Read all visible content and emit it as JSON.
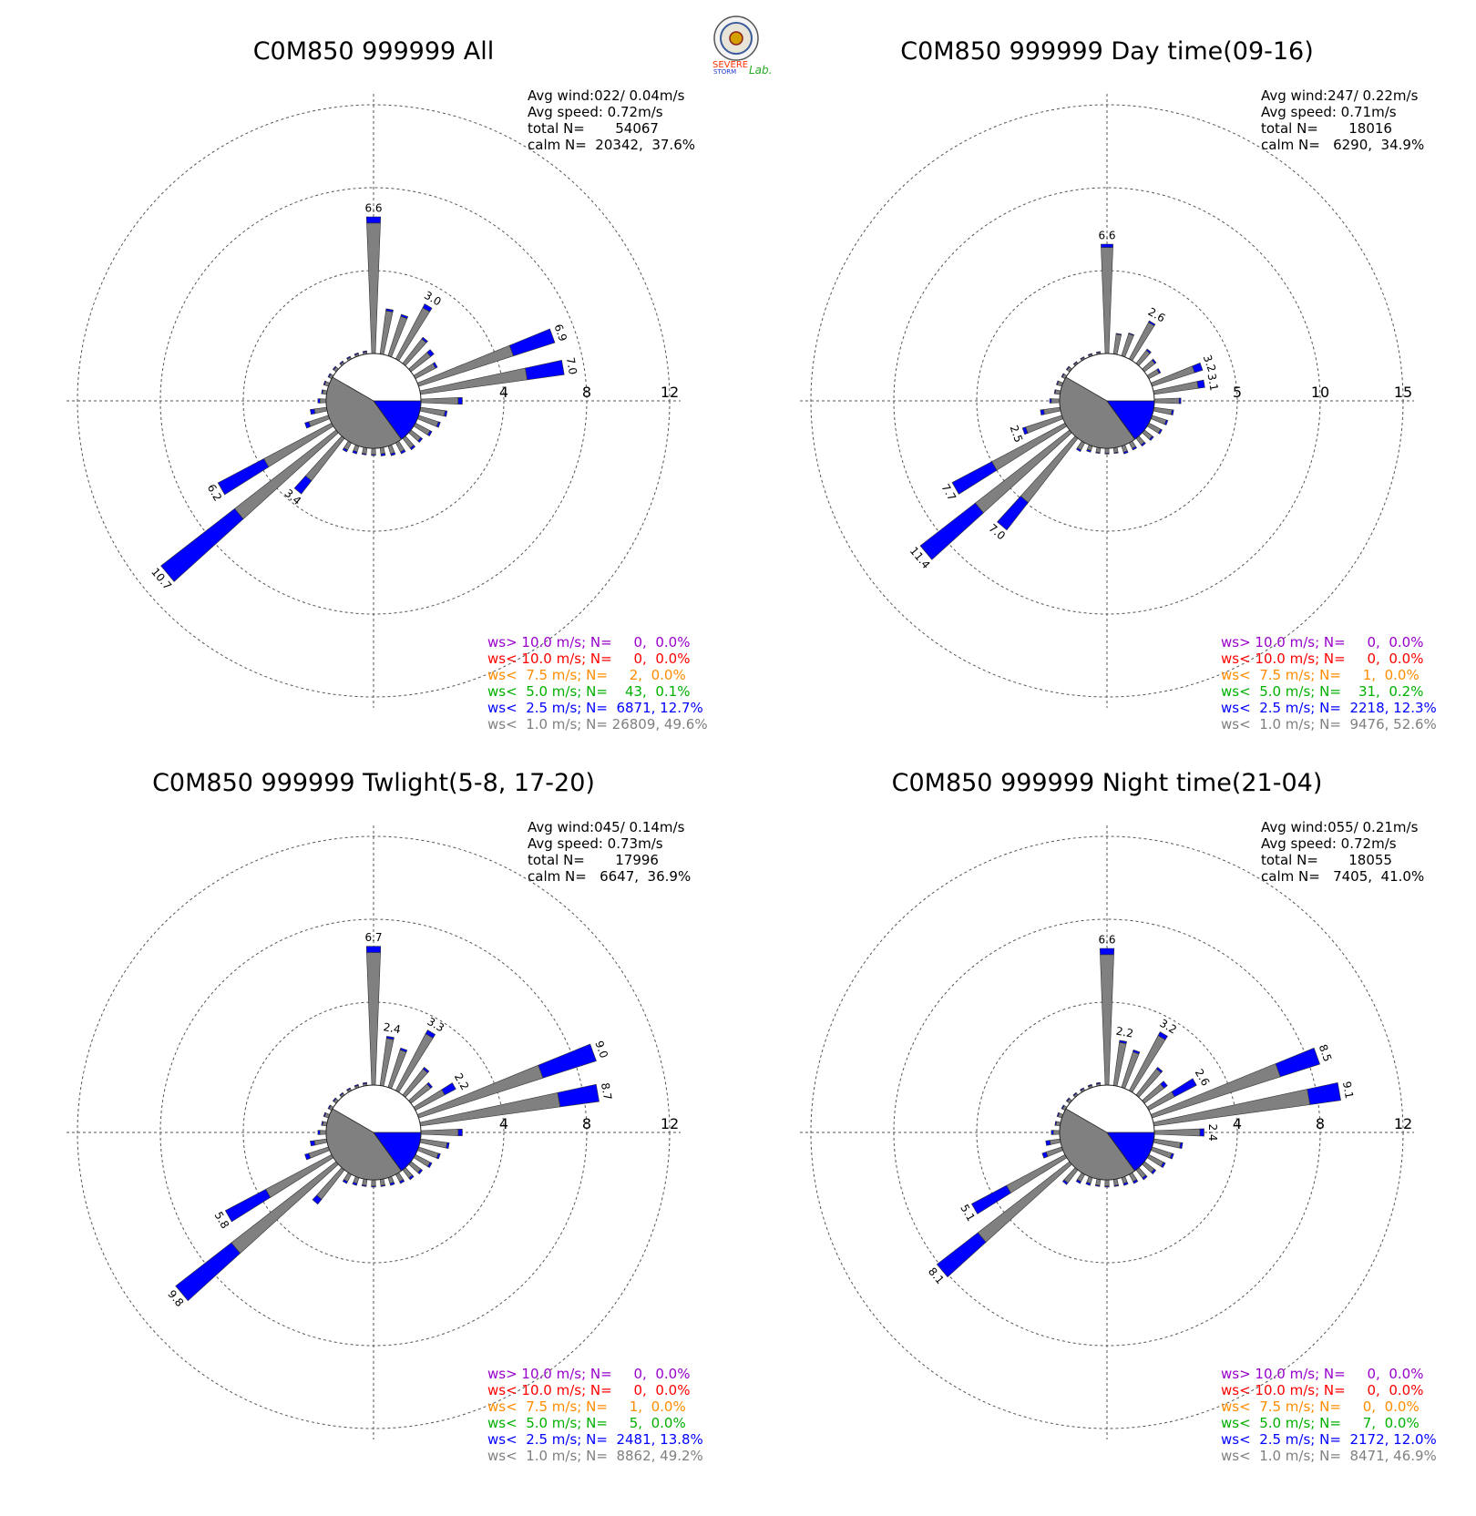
{
  "logo": {
    "text_severe": "SEVERE",
    "text_storm": "STORM",
    "text_lab": "Lab."
  },
  "colors": {
    "calm": "#808080",
    "lt1": "#808080",
    "lt25": "#0000ff",
    "lt5": "#00b000",
    "lt75": "#ff8c00",
    "lt10": "#ff0000",
    "gt10": "#9900cc"
  },
  "chart_data": [
    {
      "type": "wind-rose",
      "title": "C0M850 999999 All",
      "rings": [
        4,
        8,
        12
      ],
      "ring_labels": [
        "4",
        "8",
        "12"
      ],
      "stats": [
        "Avg wind:022/ 0.04m/s",
        "Avg speed: 0.72m/s",
        "total N=       54067",
        "calm N=  20342,  37.6%"
      ],
      "legend": [
        {
          "text": "ws> 10.0 m/s; N=     0,  0.0%",
          "key": "gt10"
        },
        {
          "text": "ws< 10.0 m/s; N=     0,  0.0%",
          "key": "lt10"
        },
        {
          "text": "ws<  7.5 m/s; N=     2,  0.0%",
          "key": "lt75"
        },
        {
          "text": "ws<  5.0 m/s; N=    43,  0.1%",
          "key": "lt5"
        },
        {
          "text": "ws<  2.5 m/s; N=  6871, 12.7%",
          "key": "lt25"
        },
        {
          "text": "ws<  1.0 m/s; N= 26809, 49.6%",
          "key": "lt1"
        }
      ],
      "petals": [
        {
          "dir": 0,
          "lt1": 6.3,
          "lt25": 0.3,
          "label": "6.6"
        },
        {
          "dir": 10,
          "lt1": 2.1,
          "lt25": 0.1
        },
        {
          "dir": 20,
          "lt1": 2.0,
          "lt25": 0.1
        },
        {
          "dir": 30,
          "lt1": 2.8,
          "lt25": 0.2,
          "label": "3.0"
        },
        {
          "dir": 40,
          "lt1": 1.5,
          "lt25": 0.1
        },
        {
          "dir": 50,
          "lt1": 1.2,
          "lt25": 0.2
        },
        {
          "dir": 60,
          "lt1": 1.1,
          "lt25": 0.1
        },
        {
          "dir": 70,
          "lt1": 4.8,
          "lt25": 2.1,
          "label": "6.9"
        },
        {
          "dir": 80,
          "lt1": 5.2,
          "lt25": 1.8,
          "label": "7.0"
        },
        {
          "dir": 90,
          "lt1": 1.8,
          "lt25": 0.2
        },
        {
          "dir": 100,
          "lt1": 1.2,
          "lt25": 0.1
        },
        {
          "dir": 110,
          "lt1": 1.0,
          "lt25": 0.1
        },
        {
          "dir": 120,
          "lt1": 0.8,
          "lt25": 0.1
        },
        {
          "dir": 130,
          "lt1": 0.6,
          "lt25": 0.1
        },
        {
          "dir": 140,
          "lt1": 0.6,
          "lt25": 0.1
        },
        {
          "dir": 150,
          "lt1": 0.5,
          "lt25": 0.1
        },
        {
          "dir": 160,
          "lt1": 0.4,
          "lt25": 0.1
        },
        {
          "dir": 170,
          "lt1": 0.3,
          "lt25": 0.1
        },
        {
          "dir": 180,
          "lt1": 0.3,
          "lt25": 0.05
        },
        {
          "dir": 190,
          "lt1": 0.3,
          "lt25": 0.05
        },
        {
          "dir": 200,
          "lt1": 0.3,
          "lt25": 0.1
        },
        {
          "dir": 210,
          "lt1": 0.4,
          "lt25": 0.1
        },
        {
          "dir": 220,
          "lt1": 2.6,
          "lt25": 0.8,
          "label": "3.4"
        },
        {
          "dir": 230,
          "lt1": 6.2,
          "lt25": 4.5,
          "label": "10.7"
        },
        {
          "dir": 240,
          "lt1": 3.7,
          "lt25": 2.5,
          "label": "6.2"
        },
        {
          "dir": 250,
          "lt1": 1.0,
          "lt25": 0.2
        },
        {
          "dir": 260,
          "lt1": 0.6,
          "lt25": 0.2
        },
        {
          "dir": 270,
          "lt1": 0.3,
          "lt25": 0.1
        },
        {
          "dir": 280,
          "lt1": 0.2,
          "lt25": 0.05
        },
        {
          "dir": 290,
          "lt1": 0.2,
          "lt25": 0.05
        },
        {
          "dir": 300,
          "lt1": 0.15,
          "lt25": 0.05
        },
        {
          "dir": 310,
          "lt1": 0.15,
          "lt25": 0.05
        },
        {
          "dir": 320,
          "lt1": 0.1,
          "lt25": 0.05
        },
        {
          "dir": 330,
          "lt1": 0.1,
          "lt25": 0.05
        },
        {
          "dir": 340,
          "lt1": 0.1,
          "lt25": 0.05
        },
        {
          "dir": 350,
          "lt1": 0.1,
          "lt25": 0.05
        }
      ]
    },
    {
      "type": "wind-rose",
      "title": "C0M850 999999 Day time(09-16)",
      "rings": [
        5,
        10,
        15
      ],
      "ring_labels": [
        "5",
        "10",
        "15"
      ],
      "stats": [
        "Avg wind:247/ 0.22m/s",
        "Avg speed: 0.71m/s",
        "total N=       18016",
        "calm N=   6290,  34.9%"
      ],
      "legend": [
        {
          "text": "ws> 10.0 m/s; N=     0,  0.0%",
          "key": "gt10"
        },
        {
          "text": "ws< 10.0 m/s; N=     0,  0.0%",
          "key": "lt10"
        },
        {
          "text": "ws<  7.5 m/s; N=     1,  0.0%",
          "key": "lt75"
        },
        {
          "text": "ws<  5.0 m/s; N=    31,  0.2%",
          "key": "lt5"
        },
        {
          "text": "ws<  2.5 m/s; N=  2218, 12.3%",
          "key": "lt25"
        },
        {
          "text": "ws<  1.0 m/s; N=  9476, 52.6%",
          "key": "lt1"
        }
      ],
      "petals": [
        {
          "dir": 0,
          "lt1": 6.4,
          "lt25": 0.2,
          "label": "6.6"
        },
        {
          "dir": 10,
          "lt1": 1.2,
          "lt25": 0.05
        },
        {
          "dir": 20,
          "lt1": 1.4,
          "lt25": 0.05
        },
        {
          "dir": 30,
          "lt1": 2.5,
          "lt25": 0.1,
          "label": "2.6"
        },
        {
          "dir": 40,
          "lt1": 1.0,
          "lt25": 0.1
        },
        {
          "dir": 50,
          "lt1": 0.8,
          "lt25": 0.1
        },
        {
          "dir": 60,
          "lt1": 0.7,
          "lt25": 0.1
        },
        {
          "dir": 70,
          "lt1": 2.7,
          "lt25": 0.5,
          "label": "3.2"
        },
        {
          "dir": 80,
          "lt1": 2.7,
          "lt25": 0.4,
          "label": "3.1"
        },
        {
          "dir": 90,
          "lt1": 1.5,
          "lt25": 0.1
        },
        {
          "dir": 100,
          "lt1": 1.1,
          "lt25": 0.1
        },
        {
          "dir": 110,
          "lt1": 0.9,
          "lt25": 0.1
        },
        {
          "dir": 120,
          "lt1": 0.8,
          "lt25": 0.1
        },
        {
          "dir": 130,
          "lt1": 0.6,
          "lt25": 0.1
        },
        {
          "dir": 140,
          "lt1": 0.5,
          "lt25": 0.1
        },
        {
          "dir": 150,
          "lt1": 0.4,
          "lt25": 0.1
        },
        {
          "dir": 160,
          "lt1": 0.4,
          "lt25": 0.1
        },
        {
          "dir": 170,
          "lt1": 0.3,
          "lt25": 0.05
        },
        {
          "dir": 180,
          "lt1": 0.3,
          "lt25": 0.05
        },
        {
          "dir": 190,
          "lt1": 0.3,
          "lt25": 0.05
        },
        {
          "dir": 200,
          "lt1": 0.3,
          "lt25": 0.1
        },
        {
          "dir": 210,
          "lt1": 0.5,
          "lt25": 0.1
        },
        {
          "dir": 220,
          "lt1": 4.9,
          "lt25": 2.1,
          "label": "7.0"
        },
        {
          "dir": 230,
          "lt1": 7.2,
          "lt25": 4.2,
          "label": "11.4"
        },
        {
          "dir": 240,
          "lt1": 5.0,
          "lt25": 2.7,
          "label": "7.7"
        },
        {
          "dir": 250,
          "lt1": 2.3,
          "lt25": 0.2,
          "label": "2.5"
        },
        {
          "dir": 260,
          "lt1": 1.0,
          "lt25": 0.2
        },
        {
          "dir": 270,
          "lt1": 0.5,
          "lt25": 0.1
        },
        {
          "dir": 280,
          "lt1": 0.3,
          "lt25": 0.05
        },
        {
          "dir": 290,
          "lt1": 0.3,
          "lt25": 0.05
        },
        {
          "dir": 300,
          "lt1": 0.2,
          "lt25": 0.05
        },
        {
          "dir": 310,
          "lt1": 0.2,
          "lt25": 0.05
        },
        {
          "dir": 320,
          "lt1": 0.1,
          "lt25": 0.05
        },
        {
          "dir": 330,
          "lt1": 0.1,
          "lt25": 0.05
        },
        {
          "dir": 340,
          "lt1": 0.1,
          "lt25": 0.05
        },
        {
          "dir": 350,
          "lt1": 0.1,
          "lt25": 0.05
        }
      ]
    },
    {
      "type": "wind-rose",
      "title": "C0M850 999999 Twlight(5-8, 17-20)",
      "rings": [
        4,
        8,
        12
      ],
      "ring_labels": [
        "4",
        "8",
        "12"
      ],
      "stats": [
        "Avg wind:045/ 0.14m/s",
        "Avg speed: 0.73m/s",
        "total N=       17996",
        "calm N=   6647,  36.9%"
      ],
      "legend": [
        {
          "text": "ws> 10.0 m/s; N=     0,  0.0%",
          "key": "gt10"
        },
        {
          "text": "ws< 10.0 m/s; N=     0,  0.0%",
          "key": "lt10"
        },
        {
          "text": "ws<  7.5 m/s; N=     1,  0.0%",
          "key": "lt75"
        },
        {
          "text": "ws<  5.0 m/s; N=     5,  0.0%",
          "key": "lt5"
        },
        {
          "text": "ws<  2.5 m/s; N=  2481, 13.8%",
          "key": "lt25"
        },
        {
          "text": "ws<  1.0 m/s; N=  8862, 49.2%",
          "key": "lt1"
        }
      ],
      "petals": [
        {
          "dir": 0,
          "lt1": 6.4,
          "lt25": 0.3,
          "label": "6.7"
        },
        {
          "dir": 10,
          "lt1": 2.3,
          "lt25": 0.1,
          "label": "2.4"
        },
        {
          "dir": 20,
          "lt1": 1.9,
          "lt25": 0.1
        },
        {
          "dir": 30,
          "lt1": 3.1,
          "lt25": 0.2,
          "label": "3.3"
        },
        {
          "dir": 40,
          "lt1": 1.6,
          "lt25": 0.1
        },
        {
          "dir": 50,
          "lt1": 1.2,
          "lt25": 0.1
        },
        {
          "dir": 60,
          "lt1": 1.6,
          "lt25": 0.6,
          "label": "2.2"
        },
        {
          "dir": 70,
          "lt1": 6.3,
          "lt25": 2.7,
          "label": "9.0"
        },
        {
          "dir": 80,
          "lt1": 6.8,
          "lt25": 1.9,
          "label": "8.7"
        },
        {
          "dir": 90,
          "lt1": 1.8,
          "lt25": 0.2
        },
        {
          "dir": 100,
          "lt1": 1.3,
          "lt25": 0.1
        },
        {
          "dir": 110,
          "lt1": 1.0,
          "lt25": 0.1
        },
        {
          "dir": 120,
          "lt1": 0.8,
          "lt25": 0.1
        },
        {
          "dir": 130,
          "lt1": 0.6,
          "lt25": 0.1
        },
        {
          "dir": 140,
          "lt1": 0.5,
          "lt25": 0.1
        },
        {
          "dir": 150,
          "lt1": 0.4,
          "lt25": 0.1
        },
        {
          "dir": 160,
          "lt1": 0.3,
          "lt25": 0.1
        },
        {
          "dir": 170,
          "lt1": 0.3,
          "lt25": 0.05
        },
        {
          "dir": 180,
          "lt1": 0.3,
          "lt25": 0.05
        },
        {
          "dir": 190,
          "lt1": 0.3,
          "lt25": 0.05
        },
        {
          "dir": 200,
          "lt1": 0.3,
          "lt25": 0.1
        },
        {
          "dir": 210,
          "lt1": 0.4,
          "lt25": 0.1
        },
        {
          "dir": 220,
          "lt1": 1.8,
          "lt25": 0.3
        },
        {
          "dir": 230,
          "lt1": 6.4,
          "lt25": 3.4,
          "label": "9.8"
        },
        {
          "dir": 240,
          "lt1": 3.6,
          "lt25": 2.2,
          "label": "5.8"
        },
        {
          "dir": 250,
          "lt1": 1.0,
          "lt25": 0.2
        },
        {
          "dir": 260,
          "lt1": 0.6,
          "lt25": 0.2
        },
        {
          "dir": 270,
          "lt1": 0.3,
          "lt25": 0.1
        },
        {
          "dir": 280,
          "lt1": 0.2,
          "lt25": 0.05
        },
        {
          "dir": 290,
          "lt1": 0.2,
          "lt25": 0.05
        },
        {
          "dir": 300,
          "lt1": 0.15,
          "lt25": 0.05
        },
        {
          "dir": 310,
          "lt1": 0.15,
          "lt25": 0.05
        },
        {
          "dir": 320,
          "lt1": 0.1,
          "lt25": 0.05
        },
        {
          "dir": 330,
          "lt1": 0.1,
          "lt25": 0.05
        },
        {
          "dir": 340,
          "lt1": 0.1,
          "lt25": 0.05
        },
        {
          "dir": 350,
          "lt1": 0.1,
          "lt25": 0.05
        }
      ]
    },
    {
      "type": "wind-rose",
      "title": "C0M850 999999 Night time(21-04)",
      "rings": [
        4,
        8,
        12
      ],
      "ring_labels": [
        "4",
        "8",
        "12"
      ],
      "stats": [
        "Avg wind:055/ 0.21m/s",
        "Avg speed: 0.72m/s",
        "total N=       18055",
        "calm N=   7405,  41.0%"
      ],
      "legend": [
        {
          "text": "ws> 10.0 m/s; N=     0,  0.0%",
          "key": "gt10"
        },
        {
          "text": "ws< 10.0 m/s; N=     0,  0.0%",
          "key": "lt10"
        },
        {
          "text": "ws<  7.5 m/s; N=     0,  0.0%",
          "key": "lt75"
        },
        {
          "text": "ws<  5.0 m/s; N=     7,  0.0%",
          "key": "lt5"
        },
        {
          "text": "ws<  2.5 m/s; N=  2172, 12.0%",
          "key": "lt25"
        },
        {
          "text": "ws<  1.0 m/s; N=  8471, 46.9%",
          "key": "lt1"
        }
      ],
      "petals": [
        {
          "dir": 0,
          "lt1": 6.3,
          "lt25": 0.3,
          "label": "6.6"
        },
        {
          "dir": 10,
          "lt1": 2.1,
          "lt25": 0.1,
          "label": "2.2"
        },
        {
          "dir": 20,
          "lt1": 1.8,
          "lt25": 0.1
        },
        {
          "dir": 30,
          "lt1": 3.0,
          "lt25": 0.2,
          "label": "3.2"
        },
        {
          "dir": 40,
          "lt1": 1.6,
          "lt25": 0.1
        },
        {
          "dir": 50,
          "lt1": 1.2,
          "lt25": 0.2
        },
        {
          "dir": 60,
          "lt1": 1.4,
          "lt25": 1.2,
          "label": "2.6"
        },
        {
          "dir": 70,
          "lt1": 6.5,
          "lt25": 2.0,
          "label": "8.5"
        },
        {
          "dir": 80,
          "lt1": 7.6,
          "lt25": 1.5,
          "label": "9.1"
        },
        {
          "dir": 90,
          "lt1": 2.2,
          "lt25": 0.2,
          "label": "2.4"
        },
        {
          "dir": 100,
          "lt1": 1.3,
          "lt25": 0.1
        },
        {
          "dir": 110,
          "lt1": 1.0,
          "lt25": 0.1
        },
        {
          "dir": 120,
          "lt1": 0.8,
          "lt25": 0.1
        },
        {
          "dir": 130,
          "lt1": 0.6,
          "lt25": 0.1
        },
        {
          "dir": 140,
          "lt1": 0.5,
          "lt25": 0.1
        },
        {
          "dir": 150,
          "lt1": 0.4,
          "lt25": 0.1
        },
        {
          "dir": 160,
          "lt1": 0.3,
          "lt25": 0.1
        },
        {
          "dir": 170,
          "lt1": 0.3,
          "lt25": 0.05
        },
        {
          "dir": 180,
          "lt1": 0.3,
          "lt25": 0.05
        },
        {
          "dir": 190,
          "lt1": 0.3,
          "lt25": 0.05
        },
        {
          "dir": 200,
          "lt1": 0.3,
          "lt25": 0.1
        },
        {
          "dir": 210,
          "lt1": 0.4,
          "lt25": 0.1
        },
        {
          "dir": 220,
          "lt1": 0.8,
          "lt25": 0.1
        },
        {
          "dir": 230,
          "lt1": 5.6,
          "lt25": 2.5,
          "label": "8.1"
        },
        {
          "dir": 240,
          "lt1": 3.2,
          "lt25": 1.9,
          "label": "5.1"
        },
        {
          "dir": 250,
          "lt1": 0.8,
          "lt25": 0.2
        },
        {
          "dir": 260,
          "lt1": 0.5,
          "lt25": 0.2
        },
        {
          "dir": 270,
          "lt1": 0.3,
          "lt25": 0.1
        },
        {
          "dir": 280,
          "lt1": 0.2,
          "lt25": 0.05
        },
        {
          "dir": 290,
          "lt1": 0.2,
          "lt25": 0.05
        },
        {
          "dir": 300,
          "lt1": 0.15,
          "lt25": 0.05
        },
        {
          "dir": 310,
          "lt1": 0.15,
          "lt25": 0.05
        },
        {
          "dir": 320,
          "lt1": 0.1,
          "lt25": 0.05
        },
        {
          "dir": 330,
          "lt1": 0.1,
          "lt25": 0.05
        },
        {
          "dir": 340,
          "lt1": 0.1,
          "lt25": 0.05
        },
        {
          "dir": 350,
          "lt1": 0.1,
          "lt25": 0.05
        }
      ]
    }
  ]
}
